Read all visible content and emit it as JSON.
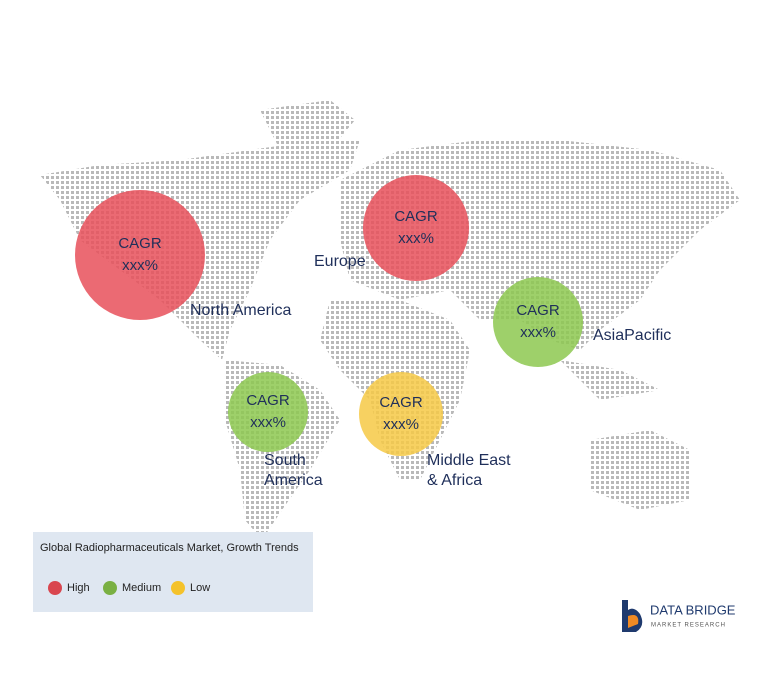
{
  "regions": [
    {
      "name": "North America",
      "label_lines": [
        "North America"
      ],
      "cagr": "CAGR",
      "value": "xxx%",
      "color": "#e8505b"
    },
    {
      "name": "Europe",
      "label_lines": [
        "Europe"
      ],
      "cagr": "CAGR",
      "value": "xxx%",
      "color": "#e8505b"
    },
    {
      "name": "AsiaPacific",
      "label_lines": [
        "AsiaPacific"
      ],
      "cagr": "CAGR",
      "value": "xxx%",
      "color": "#8dc850"
    },
    {
      "name": "South America",
      "label_lines": [
        "South",
        "America"
      ],
      "cagr": "CAGR",
      "value": "xxx%",
      "color": "#8dc850"
    },
    {
      "name": "Middle East & Africa",
      "label_lines": [
        "Middle East",
        "& Africa"
      ],
      "cagr": "CAGR",
      "value": "xxx%",
      "color": "#f6c945"
    }
  ],
  "legend": {
    "title": "Global Radiopharmaceuticals Market, Growth Trends",
    "items": [
      {
        "label": "High",
        "color": "#d9464f"
      },
      {
        "label": "Medium",
        "color": "#7ab043"
      },
      {
        "label": "Low",
        "color": "#f4c22b"
      }
    ]
  },
  "logo": {
    "name": "DATA BRIDGE",
    "tagline": "MARKET RESEARCH"
  }
}
